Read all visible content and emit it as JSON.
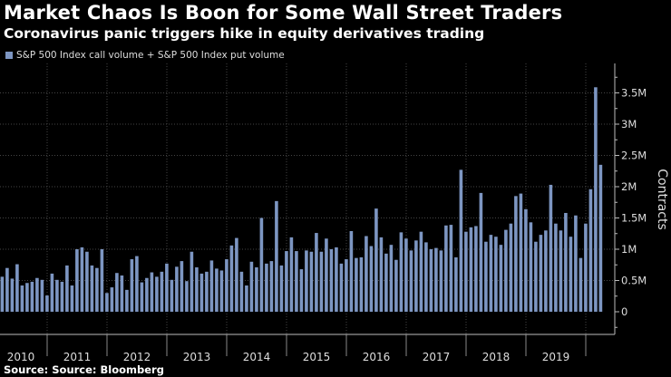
{
  "chart_data": {
    "type": "bar",
    "title": "Market Chaos Is Boon for Some Wall Street Traders",
    "subtitle": "Coronavirus panic triggers hike in equity derivatives trading",
    "source": "Source: Source: Bloomberg",
    "ylabel": "Contracts",
    "ylim": [
      -350000,
      3900000
    ],
    "yticks": [
      {
        "value": 0,
        "label": "0"
      },
      {
        "value": 500000,
        "label": "0.5M"
      },
      {
        "value": 1000000,
        "label": "1M"
      },
      {
        "value": 1500000,
        "label": "1.5M"
      },
      {
        "value": 2000000,
        "label": "2M"
      },
      {
        "value": 2500000,
        "label": "2.5M"
      },
      {
        "value": 3000000,
        "label": "3M"
      },
      {
        "value": 3500000,
        "label": "3.5M"
      }
    ],
    "xtick_labels": [
      "2010",
      "2011",
      "2012",
      "2013",
      "2014",
      "2015",
      "2016",
      "2017",
      "2018",
      "2019"
    ],
    "y_axis_position": "right",
    "legend_position": "top-left",
    "grid": true,
    "colors": {
      "bar": "#7d96c2",
      "background": "#000000",
      "grid": "#444444",
      "axis": "#bbbbbb"
    },
    "series": [
      {
        "name": "S&P 500 Index call volume + S&P 500 Index put volume",
        "x": [
          "2010-03",
          "2010-04",
          "2010-05",
          "2010-06",
          "2010-07",
          "2010-08",
          "2010-09",
          "2010-10",
          "2010-11",
          "2010-12",
          "2011-01",
          "2011-02",
          "2011-03",
          "2011-04",
          "2011-05",
          "2011-06",
          "2011-07",
          "2011-08",
          "2011-09",
          "2011-10",
          "2011-11",
          "2011-12",
          "2012-01",
          "2012-02",
          "2012-03",
          "2012-04",
          "2012-05",
          "2012-06",
          "2012-07",
          "2012-08",
          "2012-09",
          "2012-10",
          "2012-11",
          "2012-12",
          "2013-01",
          "2013-02",
          "2013-03",
          "2013-04",
          "2013-05",
          "2013-06",
          "2013-07",
          "2013-08",
          "2013-09",
          "2013-10",
          "2013-11",
          "2013-12",
          "2014-01",
          "2014-02",
          "2014-03",
          "2014-04",
          "2014-05",
          "2014-06",
          "2014-07",
          "2014-08",
          "2014-09",
          "2014-10",
          "2014-11",
          "2014-12",
          "2015-01",
          "2015-02",
          "2015-03",
          "2015-04",
          "2015-05",
          "2015-06",
          "2015-07",
          "2015-08",
          "2015-09",
          "2015-10",
          "2015-11",
          "2015-12",
          "2016-01",
          "2016-02",
          "2016-03",
          "2016-04",
          "2016-05",
          "2016-06",
          "2016-07",
          "2016-08",
          "2016-09",
          "2016-10",
          "2016-11",
          "2016-12",
          "2017-01",
          "2017-02",
          "2017-03",
          "2017-04",
          "2017-05",
          "2017-06",
          "2017-07",
          "2017-08",
          "2017-09",
          "2017-10",
          "2017-11",
          "2017-12",
          "2018-01",
          "2018-02",
          "2018-03",
          "2018-04",
          "2018-05",
          "2018-06",
          "2018-07",
          "2018-08",
          "2018-09",
          "2018-10",
          "2018-11",
          "2018-12",
          "2019-01",
          "2019-02",
          "2019-03",
          "2019-04",
          "2019-05",
          "2019-06",
          "2019-07",
          "2019-08",
          "2019-09",
          "2019-10",
          "2019-11",
          "2019-12",
          "2020-01",
          "2020-02",
          "2020-03"
        ],
        "values": [
          560000,
          700000,
          530000,
          760000,
          420000,
          460000,
          480000,
          540000,
          510000,
          260000,
          610000,
          510000,
          480000,
          740000,
          420000,
          1000000,
          1030000,
          960000,
          740000,
          700000,
          1000000,
          300000,
          390000,
          620000,
          580000,
          350000,
          840000,
          890000,
          470000,
          540000,
          630000,
          560000,
          640000,
          770000,
          510000,
          720000,
          810000,
          490000,
          960000,
          710000,
          610000,
          640000,
          820000,
          690000,
          660000,
          840000,
          1060000,
          1180000,
          640000,
          420000,
          800000,
          710000,
          1500000,
          770000,
          810000,
          1770000,
          740000,
          970000,
          1190000,
          970000,
          680000,
          980000,
          960000,
          1260000,
          960000,
          1170000,
          1000000,
          1030000,
          770000,
          840000,
          1290000,
          860000,
          870000,
          1210000,
          1050000,
          1650000,
          1190000,
          930000,
          1070000,
          830000,
          1270000,
          1170000,
          980000,
          1140000,
          1280000,
          1110000,
          1000000,
          1020000,
          980000,
          1380000,
          1390000,
          870000,
          2270000,
          1280000,
          1350000,
          1370000,
          1900000,
          1120000,
          1230000,
          1200000,
          1070000,
          1310000,
          1410000,
          1850000,
          1890000,
          1640000,
          1430000,
          1120000,
          1230000,
          1300000,
          2030000,
          1410000,
          1300000,
          1580000,
          1200000,
          1540000,
          860000,
          1410000,
          1960000,
          3590000,
          2350000
        ]
      }
    ]
  }
}
